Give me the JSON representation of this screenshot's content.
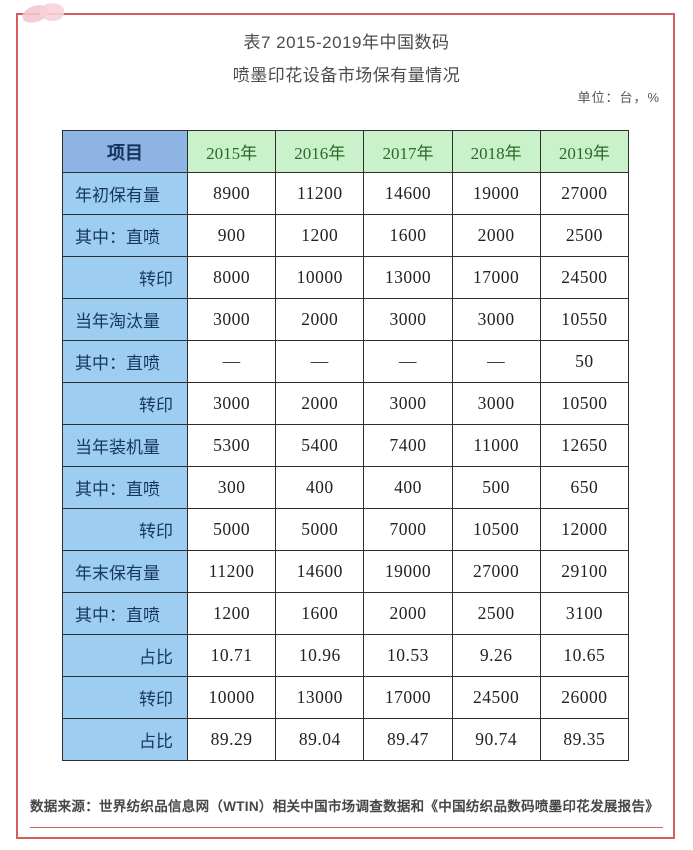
{
  "page": {
    "title_line1": "表7 2015-2019年中国数码",
    "title_line2": "喷墨印花设备市场保有量情况",
    "unit_note": "单位：台，%",
    "footer": "数据来源：世界纺织品信息网（WTIN）相关中国市场调查数据和《中国纺织品数码喷墨印花发展报告》"
  },
  "colors": {
    "frame_red": "#d25f5e",
    "footer_rule_red": "#cd6160",
    "header_label_blue": "#8db4e2",
    "row_label_blue": "#9ecdf2",
    "year_header_green": "#caf2ca",
    "year_text_green": "#2d682d",
    "label_text_navy": "#16375f",
    "deco_pink": "#f3c6ce"
  },
  "table": {
    "header": [
      "项目",
      "2015年",
      "2016年",
      "2017年",
      "2018年",
      "2019年"
    ],
    "rows": [
      {
        "label": "年初保有量",
        "align": "left",
        "values": [
          "8900",
          "11200",
          "14600",
          "19000",
          "27000"
        ]
      },
      {
        "label": "其中：直喷",
        "align": "left",
        "values": [
          "900",
          "1200",
          "1600",
          "2000",
          "2500"
        ]
      },
      {
        "label": "转印",
        "align": "right",
        "values": [
          "8000",
          "10000",
          "13000",
          "17000",
          "24500"
        ]
      },
      {
        "label": "当年淘汰量",
        "align": "left",
        "values": [
          "3000",
          "2000",
          "3000",
          "3000",
          "10550"
        ]
      },
      {
        "label": "其中：直喷",
        "align": "left",
        "values": [
          "—",
          "—",
          "—",
          "—",
          "50"
        ]
      },
      {
        "label": "转印",
        "align": "right",
        "values": [
          "3000",
          "2000",
          "3000",
          "3000",
          "10500"
        ]
      },
      {
        "label": "当年装机量",
        "align": "left",
        "values": [
          "5300",
          "5400",
          "7400",
          "11000",
          "12650"
        ]
      },
      {
        "label": "其中：直喷",
        "align": "left",
        "values": [
          "300",
          "400",
          "400",
          "500",
          "650"
        ]
      },
      {
        "label": "转印",
        "align": "right",
        "values": [
          "5000",
          "5000",
          "7000",
          "10500",
          "12000"
        ]
      },
      {
        "label": "年末保有量",
        "align": "left",
        "values": [
          "11200",
          "14600",
          "19000",
          "27000",
          "29100"
        ]
      },
      {
        "label": "其中：直喷",
        "align": "left",
        "values": [
          "1200",
          "1600",
          "2000",
          "2500",
          "3100"
        ]
      },
      {
        "label": "占比",
        "align": "right",
        "values": [
          "10.71",
          "10.96",
          "10.53",
          "9.26",
          "10.65"
        ]
      },
      {
        "label": "转印",
        "align": "right",
        "values": [
          "10000",
          "13000",
          "17000",
          "24500",
          "26000"
        ]
      },
      {
        "label": "占比",
        "align": "right",
        "values": [
          "89.29",
          "89.04",
          "89.47",
          "90.74",
          "89.35"
        ]
      }
    ]
  }
}
